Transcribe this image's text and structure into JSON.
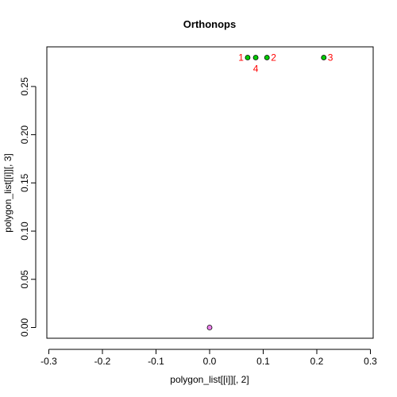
{
  "chart_data": {
    "type": "scatter",
    "title": "Orthonops",
    "xlabel": "polygon_list[[i]][, 2]",
    "ylabel": "polygon_list[[i]][, 3]",
    "xlim": [
      -0.3,
      0.3
    ],
    "ylim": [
      0,
      0.28
    ],
    "xticks": [
      "-0.3",
      "-0.2",
      "-0.1",
      "0.0",
      "0.1",
      "0.2",
      "0.3"
    ],
    "xtick_values": [
      -0.3,
      -0.2,
      -0.1,
      0.0,
      0.1,
      0.2,
      0.3
    ],
    "yticks": [
      "0.00",
      "0.05",
      "0.10",
      "0.15",
      "0.20",
      "0.25"
    ],
    "ytick_values": [
      0.0,
      0.05,
      0.1,
      0.15,
      0.2,
      0.25
    ],
    "grid": false,
    "points": [
      {
        "x": 0.0,
        "y": 0.0,
        "fill": "#ee82ee"
      },
      {
        "x": 0.071,
        "y": 0.28,
        "fill": "#00cc00"
      },
      {
        "x": 0.086,
        "y": 0.28,
        "fill": "#00cc00"
      },
      {
        "x": 0.107,
        "y": 0.28,
        "fill": "#00cc00"
      },
      {
        "x": 0.213,
        "y": 0.28,
        "fill": "#00cc00"
      }
    ],
    "labels": [
      {
        "text": "1",
        "x": 0.071,
        "y": 0.28,
        "pos": "left"
      },
      {
        "text": "2",
        "x": 0.107,
        "y": 0.28,
        "pos": "right"
      },
      {
        "text": "3",
        "x": 0.213,
        "y": 0.28,
        "pos": "right"
      },
      {
        "text": "4",
        "x": 0.086,
        "y": 0.28,
        "pos": "below"
      }
    ],
    "label_color": "#ff0000"
  }
}
